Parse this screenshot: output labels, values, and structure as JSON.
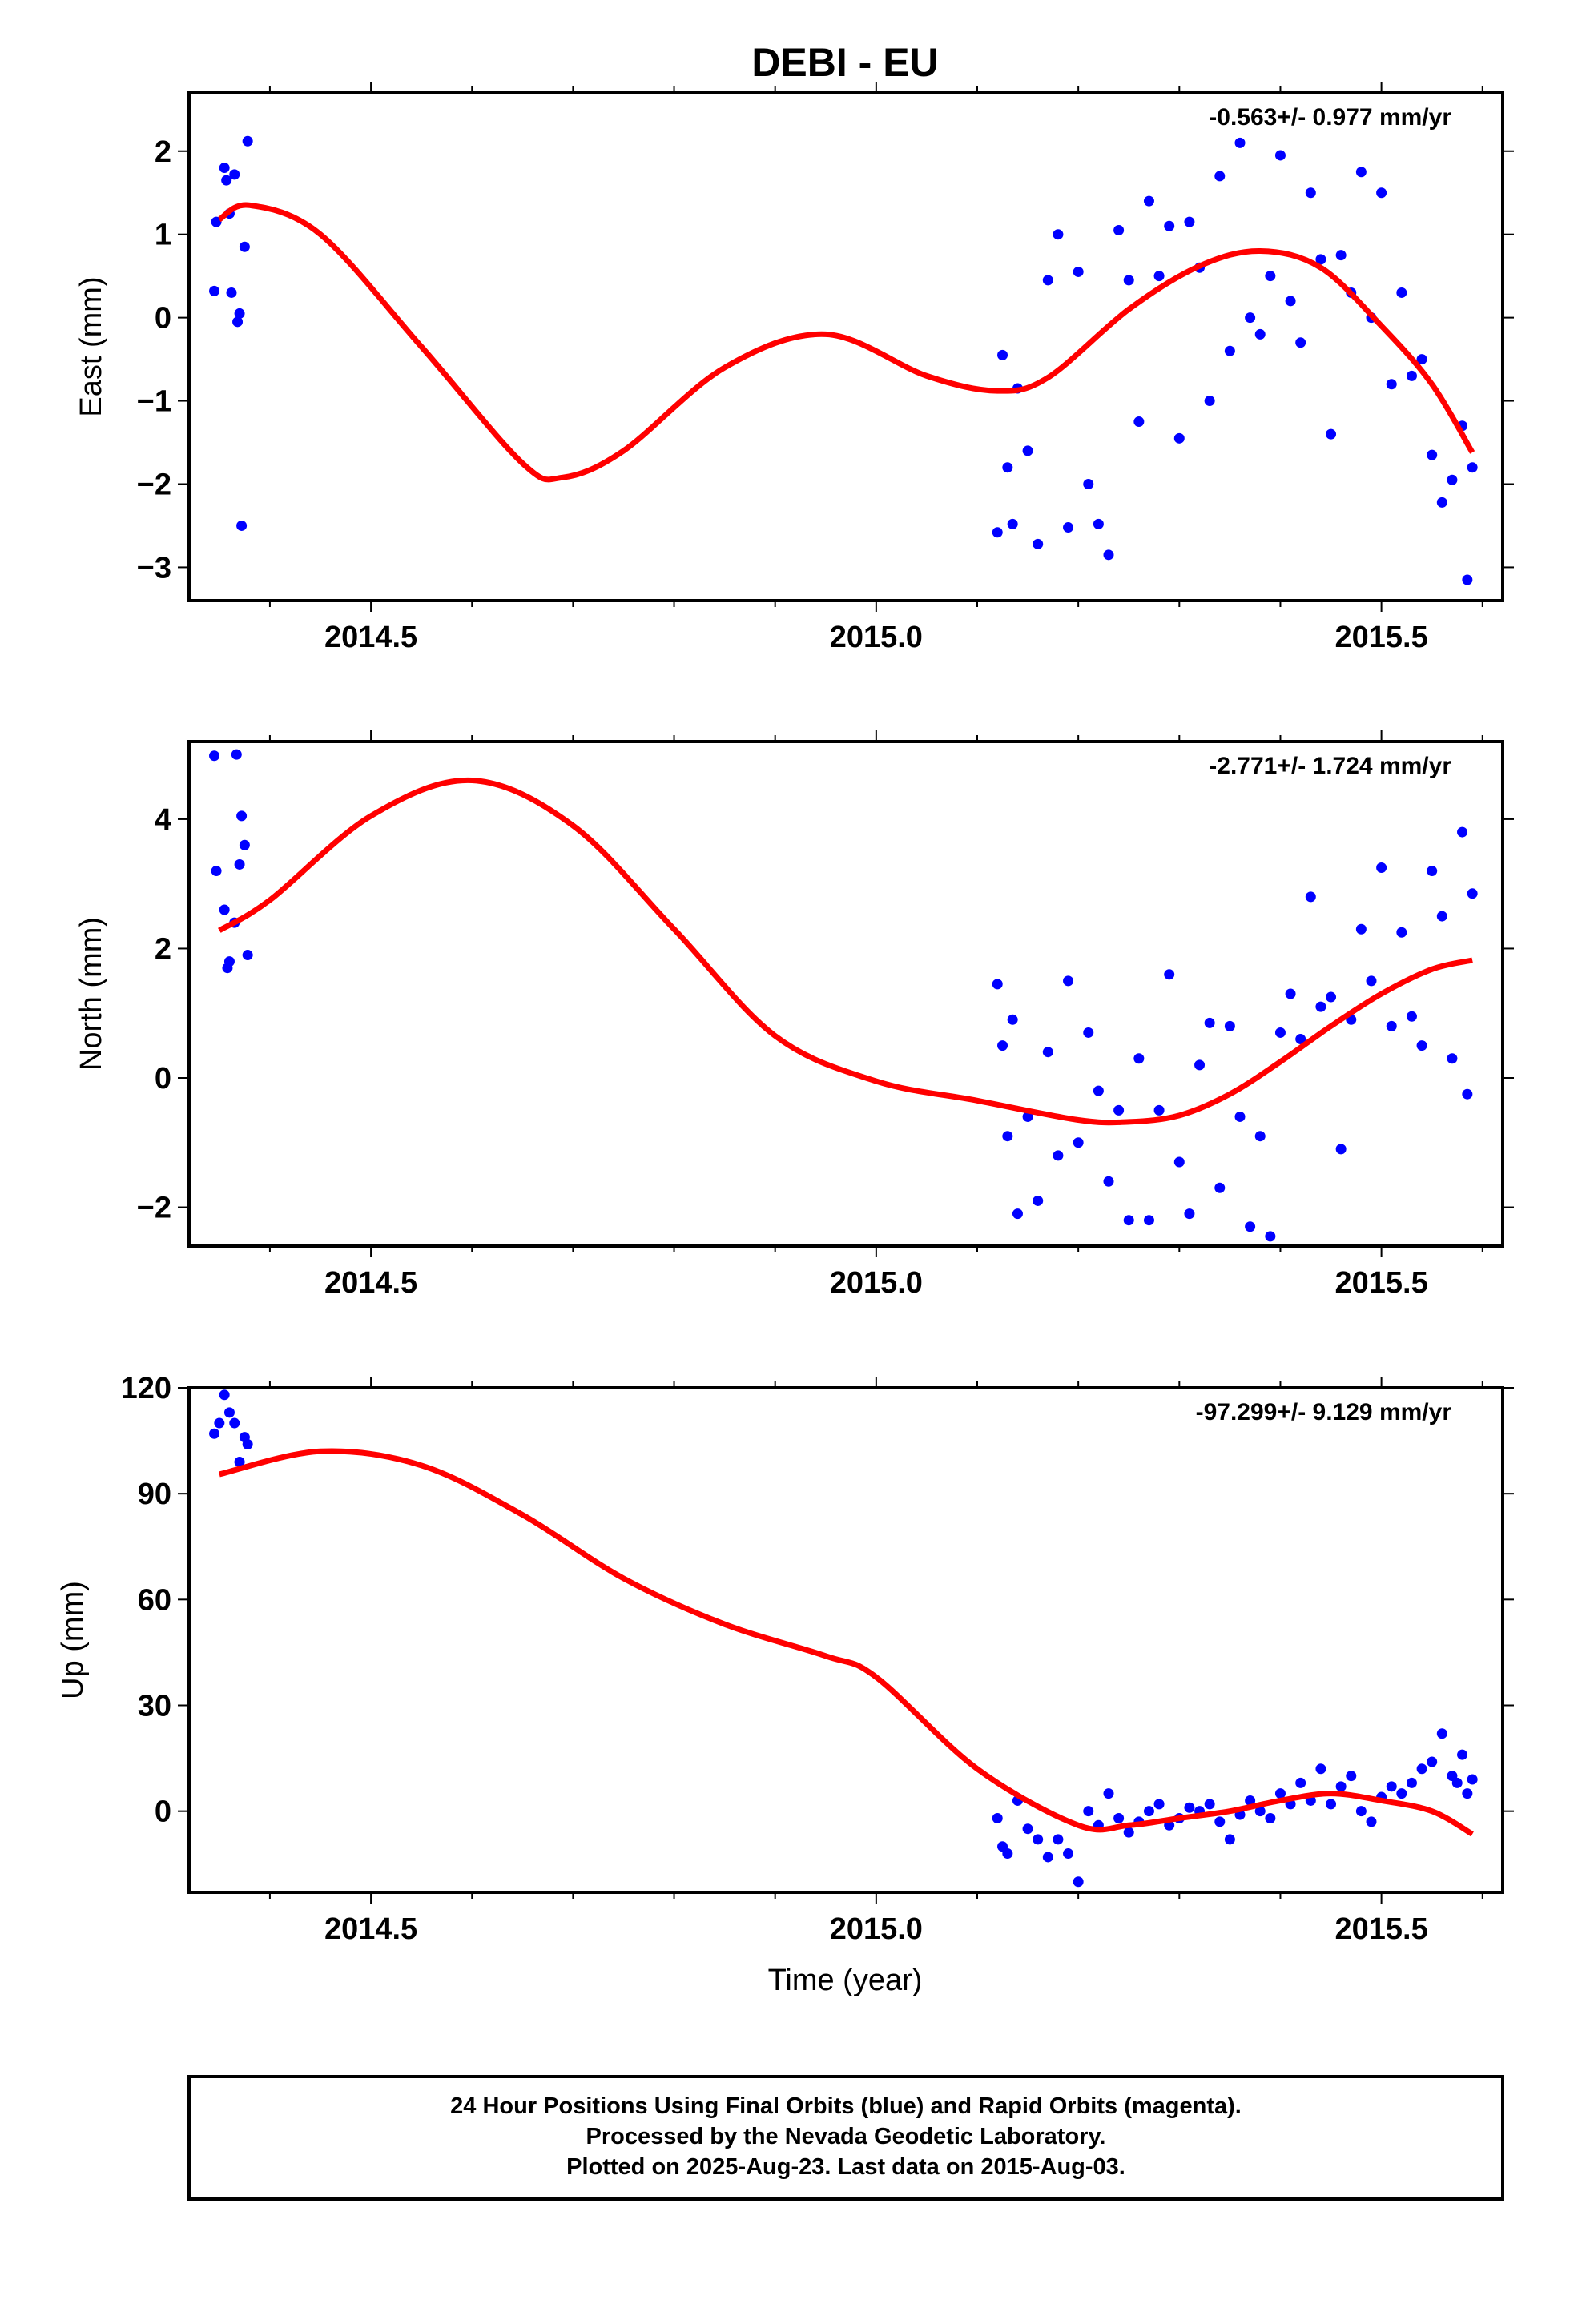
{
  "title": "DEBI - EU",
  "xlabel": "Time (year)",
  "caption": [
    "24 Hour Positions Using Final Orbits (blue) and Rapid Orbits (magenta).",
    "Processed by the Nevada Geodetic Laboratory.",
    "Plotted on 2025-Aug-23. Last data on 2015-Aug-03."
  ],
  "colors": {
    "final_orbits": "#0000ff",
    "fit": "#ff0000",
    "frame": "#000000"
  },
  "chart_data": [
    {
      "type": "scatter",
      "name": "east",
      "ylabel": "East (mm)",
      "rate_text": "-0.563+/- 0.977 mm/yr",
      "xlim": [
        2014.32,
        2015.62
      ],
      "ylim": [
        -3.4,
        2.7
      ],
      "xticks": [
        2014.5,
        2015.0,
        2015.5
      ],
      "xtick_labels": [
        "2014.5",
        "2015.0",
        "2015.5"
      ],
      "yticks": [
        -3,
        -2,
        -1,
        0,
        1,
        2
      ],
      "ytick_labels": [
        "−3",
        "−2",
        "−1",
        "0",
        "1",
        "2"
      ],
      "fit": {
        "x": [
          2014.35,
          2014.38,
          2014.45,
          2014.55,
          2014.65,
          2014.69,
          2014.75,
          2014.85,
          2014.95,
          2015.05,
          2015.12,
          2015.17,
          2015.25,
          2015.32,
          2015.38,
          2015.44,
          2015.5,
          2015.55,
          2015.59
        ],
        "y": [
          1.18,
          1.35,
          1.0,
          -0.35,
          -1.75,
          -1.92,
          -1.6,
          -0.6,
          -0.2,
          -0.7,
          -0.88,
          -0.72,
          0.1,
          0.62,
          0.8,
          0.6,
          -0.1,
          -0.8,
          -1.62
        ]
      },
      "points": {
        "x": [
          2014.345,
          2014.347,
          2014.355,
          2014.357,
          2014.36,
          2014.362,
          2014.365,
          2014.368,
          2014.37,
          2014.372,
          2014.375,
          2014.378,
          2015.12,
          2015.125,
          2015.13,
          2015.135,
          2015.14,
          2015.15,
          2015.16,
          2015.17,
          2015.18,
          2015.19,
          2015.2,
          2015.21,
          2015.22,
          2015.23,
          2015.24,
          2015.25,
          2015.26,
          2015.27,
          2015.28,
          2015.29,
          2015.3,
          2015.31,
          2015.32,
          2015.33,
          2015.34,
          2015.35,
          2015.36,
          2015.37,
          2015.38,
          2015.39,
          2015.4,
          2015.41,
          2015.42,
          2015.43,
          2015.44,
          2015.45,
          2015.46,
          2015.47,
          2015.48,
          2015.49,
          2015.5,
          2015.51,
          2015.52,
          2015.53,
          2015.54,
          2015.55,
          2015.56,
          2015.57,
          2015.58,
          2015.585,
          2015.59
        ],
        "y": [
          0.32,
          1.15,
          1.8,
          1.65,
          1.25,
          0.3,
          1.72,
          -0.05,
          0.05,
          -2.5,
          0.85,
          2.12,
          -2.58,
          -0.45,
          -1.8,
          -2.48,
          -0.85,
          -1.6,
          -2.72,
          0.45,
          1.0,
          -2.52,
          0.55,
          -2.0,
          -2.48,
          -2.85,
          1.05,
          0.45,
          -1.25,
          1.4,
          0.5,
          1.1,
          -1.45,
          1.15,
          0.6,
          -1.0,
          1.7,
          -0.4,
          2.1,
          0.0,
          -0.2,
          0.5,
          1.95,
          0.2,
          -0.3,
          1.5,
          0.7,
          -1.4,
          0.75,
          0.3,
          1.75,
          0.0,
          1.5,
          -0.8,
          0.3,
          -0.7,
          -0.5,
          -1.65,
          -2.22,
          -1.95,
          -1.3,
          -3.15,
          -1.8
        ]
      }
    },
    {
      "type": "scatter",
      "name": "north",
      "ylabel": "North (mm)",
      "rate_text": "-2.771+/- 1.724 mm/yr",
      "xlim": [
        2014.32,
        2015.62
      ],
      "ylim": [
        -2.6,
        5.2
      ],
      "xticks": [
        2014.5,
        2015.0,
        2015.5
      ],
      "xtick_labels": [
        "2014.5",
        "2015.0",
        "2015.5"
      ],
      "yticks": [
        -2,
        0,
        2,
        4
      ],
      "ytick_labels": [
        "−2",
        "0",
        "2",
        "4"
      ],
      "fit": {
        "x": [
          2014.35,
          2014.4,
          2014.5,
          2014.6,
          2014.7,
          2014.8,
          2014.9,
          2015.0,
          2015.1,
          2015.2,
          2015.25,
          2015.3,
          2015.35,
          2015.4,
          2015.45,
          2015.5,
          2015.55,
          2015.59
        ],
        "y": [
          2.28,
          2.75,
          4.05,
          4.6,
          3.9,
          2.3,
          0.65,
          -0.05,
          -0.35,
          -0.65,
          -0.68,
          -0.58,
          -0.25,
          0.25,
          0.8,
          1.3,
          1.68,
          1.82
        ]
      },
      "points": {
        "x": [
          2014.345,
          2014.347,
          2014.355,
          2014.358,
          2014.36,
          2014.365,
          2014.367,
          2014.37,
          2014.372,
          2014.375,
          2014.378,
          2015.12,
          2015.125,
          2015.13,
          2015.135,
          2015.14,
          2015.15,
          2015.16,
          2015.17,
          2015.18,
          2015.19,
          2015.2,
          2015.21,
          2015.22,
          2015.23,
          2015.24,
          2015.25,
          2015.26,
          2015.27,
          2015.28,
          2015.29,
          2015.3,
          2015.31,
          2015.32,
          2015.33,
          2015.34,
          2015.35,
          2015.36,
          2015.37,
          2015.38,
          2015.39,
          2015.4,
          2015.41,
          2015.42,
          2015.43,
          2015.44,
          2015.45,
          2015.46,
          2015.47,
          2015.48,
          2015.49,
          2015.5,
          2015.51,
          2015.52,
          2015.53,
          2015.54,
          2015.55,
          2015.56,
          2015.57,
          2015.58,
          2015.585,
          2015.59
        ],
        "y": [
          4.98,
          3.2,
          2.6,
          1.7,
          1.8,
          2.4,
          5.0,
          3.3,
          4.05,
          3.6,
          1.9,
          1.45,
          0.5,
          -0.9,
          0.9,
          -2.1,
          -0.6,
          -1.9,
          0.4,
          -1.2,
          1.5,
          -1.0,
          0.7,
          -0.2,
          -1.6,
          -0.5,
          -2.2,
          0.3,
          -2.2,
          -0.5,
          1.6,
          -1.3,
          -2.1,
          0.2,
          0.85,
          -1.7,
          0.8,
          -0.6,
          -2.3,
          -0.9,
          -2.45,
          0.7,
          1.3,
          0.6,
          2.8,
          1.1,
          1.25,
          -1.1,
          0.9,
          2.3,
          1.5,
          3.25,
          0.8,
          2.25,
          0.95,
          0.5,
          3.2,
          2.5,
          0.3,
          3.8,
          -0.25,
          2.85
        ]
      }
    },
    {
      "type": "scatter",
      "name": "up",
      "ylabel": "Up (mm)",
      "rate_text": "-97.299+/- 9.129 mm/yr",
      "xlim": [
        2014.32,
        2015.62
      ],
      "ylim": [
        -23,
        120
      ],
      "xticks": [
        2014.5,
        2015.0,
        2015.5
      ],
      "xtick_labels": [
        "2014.5",
        "2015.0",
        "2015.5"
      ],
      "yticks": [
        0,
        30,
        60,
        90,
        120
      ],
      "ytick_labels": [
        "0",
        "30",
        "60",
        "90",
        "120"
      ],
      "fit": {
        "x": [
          2014.35,
          2014.45,
          2014.55,
          2014.65,
          2014.75,
          2014.85,
          2014.95,
          2015.0,
          2015.1,
          2015.2,
          2015.25,
          2015.3,
          2015.35,
          2015.4,
          2015.45,
          2015.5,
          2015.55,
          2015.59
        ],
        "y": [
          95.5,
          102,
          98,
          84,
          66,
          53,
          44,
          38,
          12,
          -4,
          -4,
          -2,
          0,
          3,
          5,
          3,
          0,
          -6.5
        ]
      },
      "points": {
        "x": [
          2014.345,
          2014.35,
          2014.355,
          2014.36,
          2014.365,
          2014.37,
          2014.375,
          2014.378,
          2015.12,
          2015.125,
          2015.13,
          2015.14,
          2015.15,
          2015.16,
          2015.17,
          2015.18,
          2015.19,
          2015.2,
          2015.21,
          2015.22,
          2015.23,
          2015.24,
          2015.25,
          2015.26,
          2015.27,
          2015.28,
          2015.29,
          2015.3,
          2015.31,
          2015.32,
          2015.33,
          2015.34,
          2015.35,
          2015.36,
          2015.37,
          2015.38,
          2015.39,
          2015.4,
          2015.41,
          2015.42,
          2015.43,
          2015.44,
          2015.45,
          2015.46,
          2015.47,
          2015.48,
          2015.49,
          2015.5,
          2015.51,
          2015.52,
          2015.53,
          2015.54,
          2015.55,
          2015.56,
          2015.57,
          2015.575,
          2015.58,
          2015.585,
          2015.59
        ],
        "y": [
          107,
          110,
          118,
          113,
          110,
          99,
          106,
          104,
          -2,
          -10,
          -12,
          3,
          -5,
          -8,
          -13,
          -8,
          -12,
          -20,
          0,
          -4,
          5,
          -2,
          -6,
          -3,
          0,
          2,
          -4,
          -2,
          1,
          0,
          2,
          -3,
          -8,
          -1,
          3,
          0,
          -2,
          5,
          2,
          8,
          3,
          12,
          2,
          7,
          10,
          0,
          -3,
          4,
          7,
          5,
          8,
          12,
          14,
          22,
          10,
          8,
          16,
          5,
          9
        ]
      }
    }
  ]
}
